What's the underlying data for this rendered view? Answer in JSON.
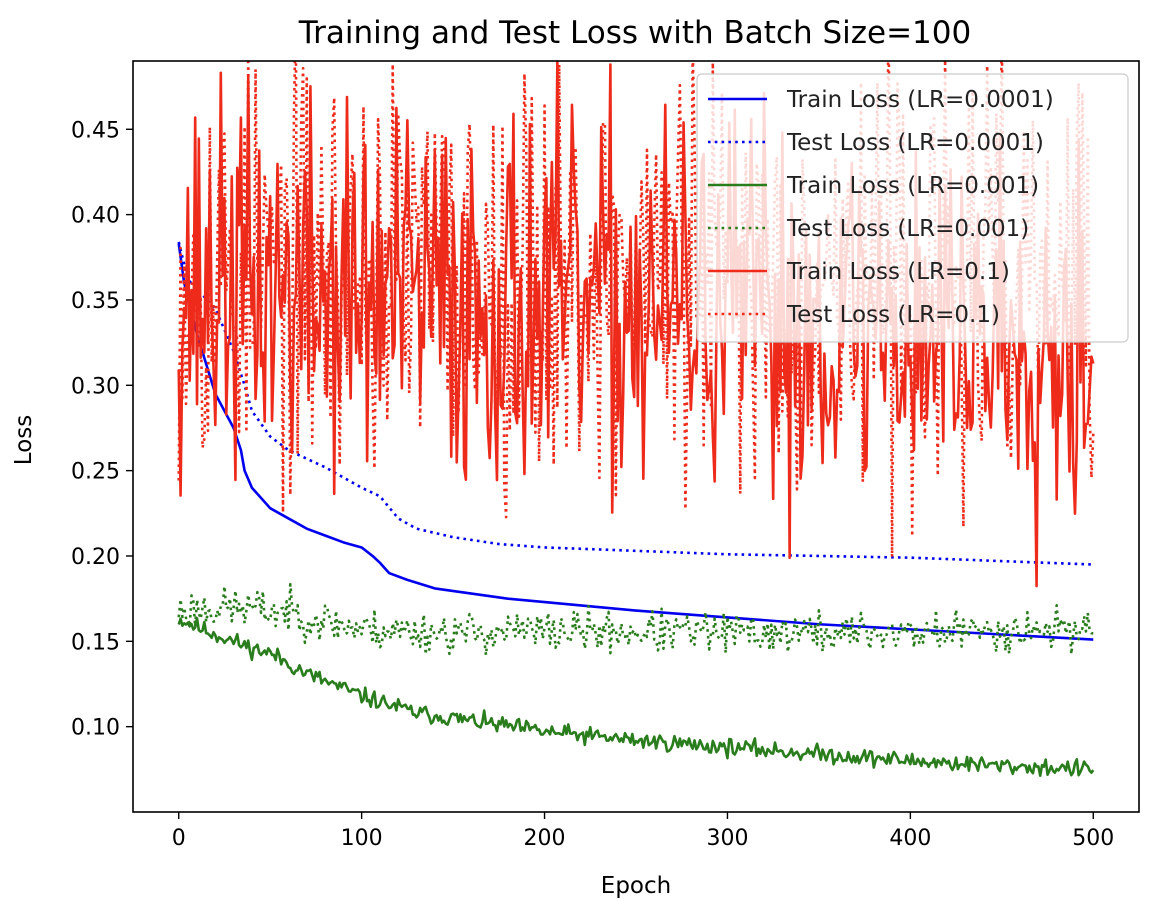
{
  "chart_data": {
    "type": "line",
    "title": "Training and Test Loss with Batch Size=100",
    "xlabel": "Epoch",
    "ylabel": "Loss",
    "xlim": [
      -25,
      525
    ],
    "ylim": [
      0.05,
      0.49
    ],
    "xticks": [
      0,
      100,
      200,
      300,
      400,
      500
    ],
    "yticks": [
      0.1,
      0.15,
      0.2,
      0.25,
      0.3,
      0.35,
      0.4,
      0.45
    ],
    "grid": false,
    "legend_position": "top-right",
    "series": [
      {
        "name": "Train Loss (LR=0.0001)",
        "color": "#0000ee",
        "style": "solid",
        "pattern": "smooth",
        "points": [
          [
            0,
            0.383
          ],
          [
            3,
            0.36
          ],
          [
            10,
            0.33
          ],
          [
            20,
            0.295
          ],
          [
            30,
            0.275
          ],
          [
            34,
            0.262
          ],
          [
            36,
            0.25
          ],
          [
            40,
            0.24
          ],
          [
            50,
            0.228
          ],
          [
            60,
            0.222
          ],
          [
            70,
            0.216
          ],
          [
            80,
            0.212
          ],
          [
            90,
            0.208
          ],
          [
            100,
            0.205
          ],
          [
            106,
            0.2
          ],
          [
            110,
            0.196
          ],
          [
            115,
            0.19
          ],
          [
            125,
            0.186
          ],
          [
            140,
            0.181
          ],
          [
            160,
            0.178
          ],
          [
            180,
            0.175
          ],
          [
            200,
            0.173
          ],
          [
            250,
            0.168
          ],
          [
            300,
            0.164
          ],
          [
            350,
            0.16
          ],
          [
            400,
            0.157
          ],
          [
            450,
            0.154
          ],
          [
            500,
            0.151
          ]
        ]
      },
      {
        "name": "Test Loss (LR=0.0001)",
        "color": "#0000ee",
        "style": "dotted",
        "pattern": "smooth",
        "points": [
          [
            0,
            0.384
          ],
          [
            5,
            0.362
          ],
          [
            20,
            0.345
          ],
          [
            30,
            0.32
          ],
          [
            36,
            0.3
          ],
          [
            40,
            0.285
          ],
          [
            50,
            0.27
          ],
          [
            60,
            0.262
          ],
          [
            80,
            0.252
          ],
          [
            100,
            0.24
          ],
          [
            110,
            0.235
          ],
          [
            120,
            0.222
          ],
          [
            130,
            0.216
          ],
          [
            150,
            0.211
          ],
          [
            175,
            0.207
          ],
          [
            200,
            0.205
          ],
          [
            250,
            0.203
          ],
          [
            300,
            0.201
          ],
          [
            350,
            0.2
          ],
          [
            400,
            0.199
          ],
          [
            450,
            0.197
          ],
          [
            500,
            0.195
          ]
        ]
      },
      {
        "name": "Train Loss (LR=0.001)",
        "color": "#2a7d1c",
        "style": "solid",
        "pattern": "noisy",
        "noise": 0.0025,
        "seed": 11,
        "points": [
          [
            0,
            0.163
          ],
          [
            20,
            0.154
          ],
          [
            40,
            0.146
          ],
          [
            50,
            0.143
          ],
          [
            70,
            0.131
          ],
          [
            100,
            0.118
          ],
          [
            130,
            0.108
          ],
          [
            150,
            0.105
          ],
          [
            200,
            0.097
          ],
          [
            250,
            0.092
          ],
          [
            300,
            0.088
          ],
          [
            350,
            0.084
          ],
          [
            400,
            0.08
          ],
          [
            450,
            0.077
          ],
          [
            500,
            0.075
          ]
        ]
      },
      {
        "name": "Test Loss (LR=0.001)",
        "color": "#2a7d1c",
        "style": "dotted",
        "pattern": "noisy",
        "noise": 0.006,
        "seed": 23,
        "points": [
          [
            0,
            0.168
          ],
          [
            30,
            0.17
          ],
          [
            60,
            0.167
          ],
          [
            80,
            0.162
          ],
          [
            100,
            0.157
          ],
          [
            150,
            0.155
          ],
          [
            200,
            0.156
          ],
          [
            300,
            0.155
          ],
          [
            400,
            0.155
          ],
          [
            500,
            0.158
          ]
        ]
      },
      {
        "name": "Train Loss (LR=0.1)",
        "color": "#ee2a1a",
        "style": "solid",
        "pattern": "noisy",
        "noise": 0.055,
        "seed": 37,
        "points": [
          [
            0,
            0.36
          ],
          [
            500,
            0.33
          ]
        ]
      },
      {
        "name": "Test Loss (LR=0.1)",
        "color": "#ee2a1a",
        "style": "dotted",
        "pattern": "noisy",
        "noise": 0.06,
        "seed": 53,
        "points": [
          [
            0,
            0.37
          ],
          [
            500,
            0.36
          ]
        ]
      }
    ]
  }
}
